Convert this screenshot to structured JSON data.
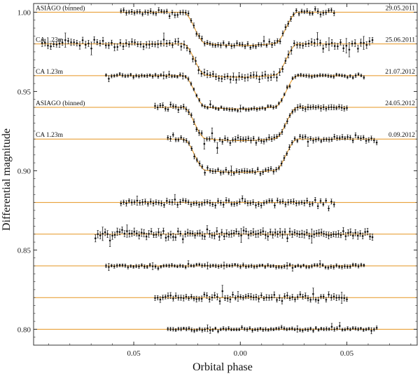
{
  "chart_data": {
    "type": "scatter",
    "xlabel": "Orbital phase",
    "ylabel": "Differential magnitude",
    "xlim": [
      -0.097,
      0.083
    ],
    "ylim": [
      0.79,
      1.0055
    ],
    "x_ticks": [
      {
        "value": -0.05,
        "label": "0.05"
      },
      {
        "value": 0.0,
        "label": "0.00"
      },
      {
        "value": 0.05,
        "label": "0.05"
      }
    ],
    "y_ticks": [
      {
        "value": 1.0,
        "label": "1.00"
      },
      {
        "value": 0.95,
        "label": "0.95"
      },
      {
        "value": 0.9,
        "label": "0.90"
      },
      {
        "value": 0.85,
        "label": "0.85"
      },
      {
        "value": 0.8,
        "label": "0.80"
      }
    ],
    "model_color": "#e69520",
    "point_color": "#111111",
    "transit": {
      "t1": -0.027,
      "t2": -0.016,
      "t3": 0.016,
      "t4": 0.027
    },
    "series": [
      {
        "label": "ASIAGO (binned)",
        "date": "29.05.2011",
        "baseline": 1.0,
        "depth": 0.021,
        "x_start": -0.056,
        "x_end": 0.044,
        "n": 80,
        "err": 0.0011,
        "jitter": 0.0007
      },
      {
        "label": "CA 1.23m",
        "date": "25.06.2011",
        "baseline": 0.98,
        "depth": 0.021,
        "x_start": -0.093,
        "x_end": 0.062,
        "n": 115,
        "err": 0.0016,
        "jitter": 0.001
      },
      {
        "label": "CA 1.23m",
        "date": "21.07.2012",
        "baseline": 0.96,
        "depth": 0.021,
        "x_start": -0.063,
        "x_end": 0.058,
        "n": 95,
        "err": 0.0008,
        "jitter": 0.0004
      },
      {
        "label": "ASIAGO (binned)",
        "date": "24.05.2012",
        "baseline": 0.94,
        "depth": 0.021,
        "x_start": -0.04,
        "x_end": 0.05,
        "n": 75,
        "err": 0.0012,
        "jitter": 0.0007
      },
      {
        "label": "CA 1.23m",
        "date": "0.09.2012",
        "baseline": 0.92,
        "depth": 0.021,
        "x_start": -0.034,
        "x_end": 0.064,
        "n": 80,
        "err": 0.0011,
        "jitter": 0.0007
      },
      {
        "label": "",
        "date": "",
        "baseline": 0.88,
        "depth": 0.0,
        "x_start": -0.056,
        "x_end": 0.044,
        "n": 80,
        "err": 0.0012,
        "jitter": 0.0007
      },
      {
        "label": "",
        "date": "",
        "baseline": 0.86,
        "depth": 0.0,
        "x_start": -0.068,
        "x_end": 0.062,
        "n": 115,
        "err": 0.0016,
        "jitter": 0.001
      },
      {
        "label": "",
        "date": "",
        "baseline": 0.84,
        "depth": 0.0,
        "x_start": -0.063,
        "x_end": 0.058,
        "n": 95,
        "err": 0.0008,
        "jitter": 0.0004
      },
      {
        "label": "",
        "date": "",
        "baseline": 0.82,
        "depth": 0.0,
        "x_start": -0.04,
        "x_end": 0.05,
        "n": 75,
        "err": 0.0013,
        "jitter": 0.0008
      },
      {
        "label": "",
        "date": "",
        "baseline": 0.8,
        "depth": 0.0,
        "x_start": -0.034,
        "x_end": 0.064,
        "n": 80,
        "err": 0.0008,
        "jitter": 0.0004
      }
    ]
  }
}
